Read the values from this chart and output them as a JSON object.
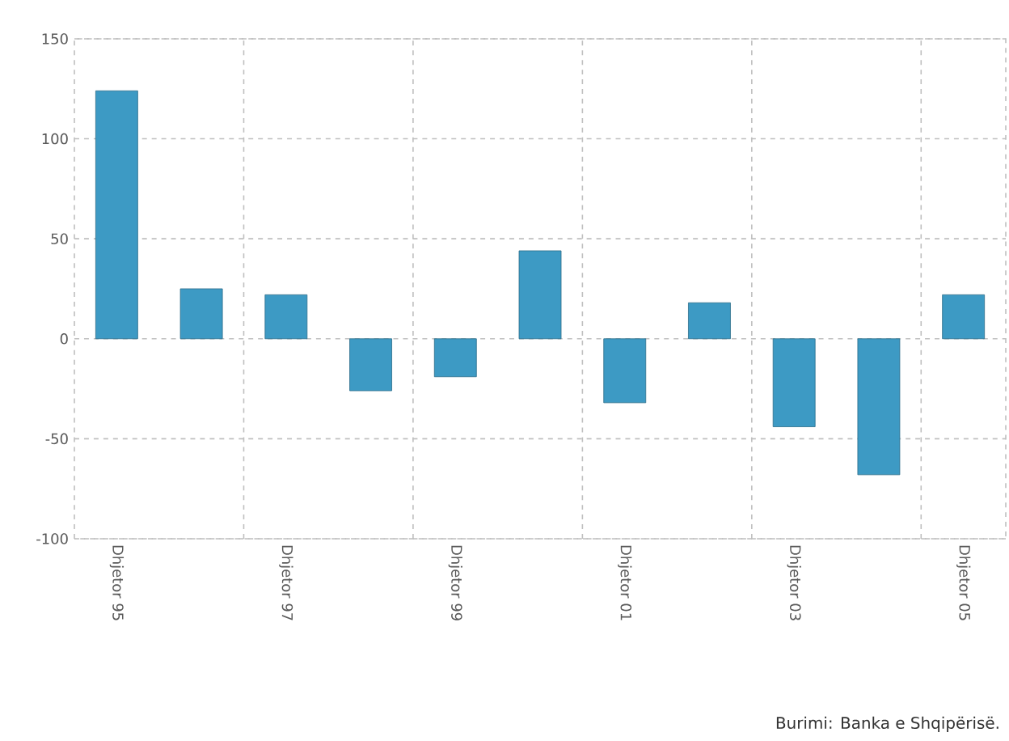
{
  "chart_data": {
    "type": "bar",
    "categories": [
      "Dhjetor 95",
      null,
      "Dhjetor 97",
      null,
      "Dhjetor 99",
      null,
      "Dhjetor 01",
      null,
      "Dhjetor 03",
      null,
      "Dhjetor 05"
    ],
    "values": [
      124,
      25,
      22,
      -26,
      -19,
      44,
      -32,
      18,
      -44,
      -68,
      22
    ],
    "color": "#3d9ac4",
    "ylim": [
      -100,
      150
    ],
    "yticks": [
      -100,
      -50,
      0,
      50,
      100,
      150
    ],
    "grid": true,
    "annotations": [
      "Burimi: Banka e Shqipërisë."
    ]
  }
}
